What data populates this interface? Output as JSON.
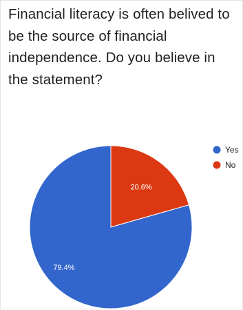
{
  "question": {
    "text": "Financial literacy is often belived to be the source of financial independence. Do you believe in the statement?"
  },
  "chart_data": {
    "type": "pie",
    "title": "Financial literacy is often belived to be the source of financial independence. Do you believe in the statement?",
    "categories": [
      "Yes",
      "No"
    ],
    "values": [
      79.4,
      20.6
    ],
    "labels": [
      "79.4%",
      "20.6%"
    ],
    "colors": [
      "#3366cc",
      "#dc3912"
    ],
    "legend_position": "top-right"
  }
}
